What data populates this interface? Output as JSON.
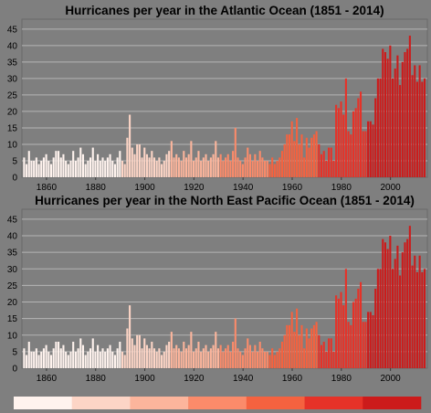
{
  "chart_data": [
    {
      "type": "bar",
      "title": "Hurricanes per year in the Atlantic Ocean (1851 - 2014)",
      "xlabel": "",
      "ylabel": "",
      "x_ticks": [
        1860,
        1880,
        1900,
        1920,
        1940,
        1960,
        1980,
        2000
      ],
      "y_ticks": [
        0,
        5,
        10,
        15,
        20,
        25,
        30,
        35,
        40,
        45
      ],
      "ylim": [
        0,
        48
      ],
      "xlim": [
        1850,
        2015
      ],
      "grid": true,
      "years": [
        1851,
        2014
      ],
      "values": [
        6,
        4,
        8,
        5,
        5,
        6,
        4,
        5,
        6,
        7,
        5,
        4,
        6,
        8,
        8,
        6,
        7,
        5,
        4,
        5,
        8,
        5,
        6,
        9,
        7,
        4,
        5,
        6,
        9,
        5,
        7,
        5,
        6,
        5,
        6,
        7,
        5,
        4,
        6,
        8,
        5,
        4,
        12,
        19,
        9,
        7,
        10,
        10,
        6,
        9,
        7,
        6,
        8,
        6,
        5,
        6,
        4,
        5,
        7,
        8,
        11,
        6,
        7,
        6,
        5,
        8,
        6,
        7,
        11,
        5,
        6,
        8,
        5,
        6,
        7,
        5,
        6,
        7,
        11,
        6,
        7,
        5,
        6,
        7,
        5,
        8,
        15,
        6,
        5,
        4,
        6,
        9,
        7,
        5,
        7,
        5,
        8,
        6,
        5,
        5,
        4,
        6,
        4,
        5,
        6,
        8,
        10,
        13,
        13,
        17,
        11,
        18,
        10,
        13,
        6,
        12,
        9,
        12,
        13,
        14,
        10,
        7,
        8,
        5,
        9,
        9,
        5,
        22,
        21,
        23,
        19,
        30,
        14,
        13,
        20,
        21,
        24,
        26,
        14,
        14,
        17,
        17,
        16,
        24,
        30,
        30,
        39,
        38,
        36,
        40,
        30,
        33,
        37,
        28,
        35,
        38,
        39,
        43,
        31,
        34,
        29,
        34,
        29,
        30
      ],
      "colors": [
        "#fff3ee",
        "#fdd5c6",
        "#fcb59c",
        "#fb8b6a",
        "#f5623f",
        "#e63228",
        "#cc1b1b"
      ],
      "color_breaks_year": [
        1871,
        1891,
        1911,
        1931,
        1951,
        1971,
        1991
      ]
    },
    {
      "type": "bar",
      "title": "Hurricanes per year in the North East Pacific Ocean (1851 - 2014)",
      "xlabel": "",
      "ylabel": "",
      "x_ticks": [
        1860,
        1880,
        1900,
        1920,
        1940,
        1960,
        1980,
        2000
      ],
      "y_ticks": [
        0,
        5,
        10,
        15,
        20,
        25,
        30,
        35,
        40,
        45
      ],
      "ylim": [
        0,
        48
      ],
      "xlim": [
        1850,
        2015
      ],
      "grid": true,
      "years": [
        1851,
        2014
      ],
      "values": [
        6,
        4,
        8,
        5,
        5,
        6,
        4,
        5,
        6,
        7,
        5,
        4,
        6,
        8,
        8,
        6,
        7,
        5,
        4,
        5,
        8,
        5,
        6,
        9,
        7,
        4,
        5,
        6,
        9,
        5,
        7,
        5,
        6,
        5,
        6,
        7,
        5,
        4,
        6,
        8,
        5,
        4,
        12,
        19,
        9,
        7,
        10,
        10,
        6,
        9,
        7,
        6,
        8,
        6,
        5,
        6,
        4,
        5,
        7,
        8,
        11,
        6,
        7,
        6,
        5,
        8,
        6,
        7,
        11,
        5,
        6,
        8,
        5,
        6,
        7,
        5,
        6,
        7,
        11,
        6,
        7,
        5,
        6,
        7,
        5,
        8,
        15,
        6,
        5,
        4,
        6,
        9,
        7,
        5,
        7,
        5,
        8,
        6,
        5,
        5,
        4,
        6,
        4,
        5,
        6,
        8,
        10,
        13,
        13,
        17,
        11,
        18,
        10,
        13,
        6,
        12,
        9,
        12,
        13,
        14,
        10,
        7,
        8,
        5,
        9,
        9,
        5,
        22,
        21,
        23,
        19,
        30,
        14,
        13,
        20,
        21,
        24,
        26,
        14,
        14,
        17,
        17,
        16,
        24,
        30,
        30,
        39,
        38,
        36,
        40,
        30,
        33,
        37,
        28,
        35,
        38,
        39,
        43,
        31,
        34,
        29,
        34,
        29,
        30
      ],
      "colors": [
        "#fff3ee",
        "#fdd5c6",
        "#fcb59c",
        "#fb8b6a",
        "#f5623f",
        "#e63228",
        "#cc1b1b"
      ],
      "color_breaks_year": [
        1871,
        1891,
        1911,
        1931,
        1951,
        1971,
        1991
      ]
    }
  ],
  "legend": {
    "colors": [
      "#fff3ee",
      "#fdd5c6",
      "#fcb59c",
      "#fb8b6a",
      "#f5623f",
      "#e63228",
      "#cc1b1b"
    ]
  }
}
